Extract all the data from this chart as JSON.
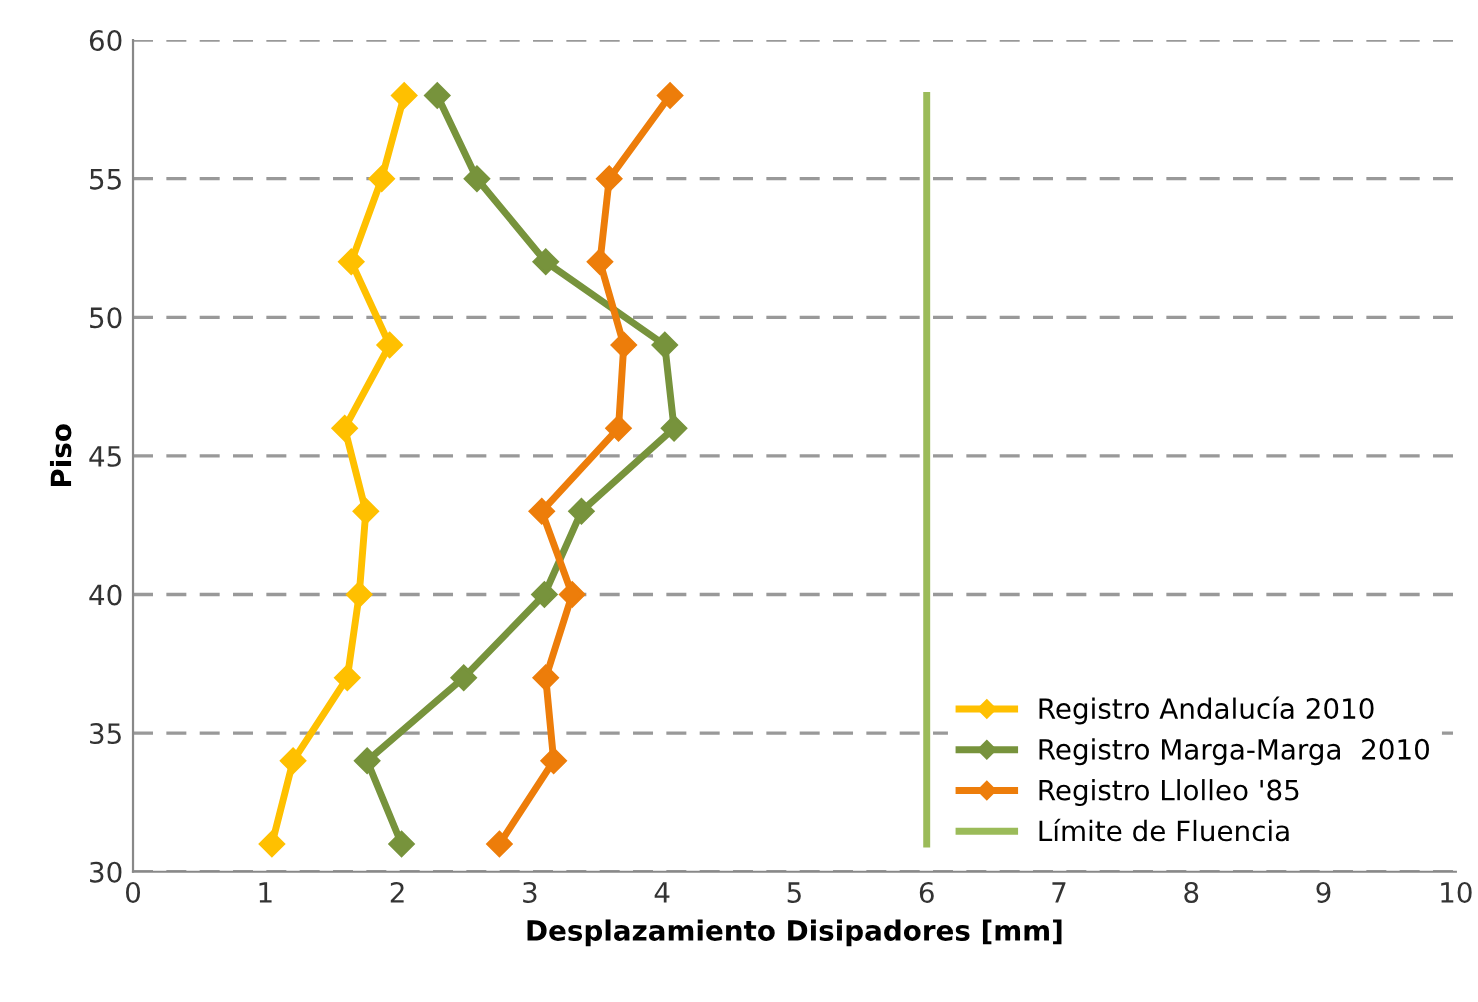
{
  "chart_data": {
    "type": "line",
    "xlabel": "Desplazamiento Disipadores [mm]",
    "ylabel": "Piso",
    "xlim": [
      0,
      10
    ],
    "xticks": [
      0,
      1,
      2,
      3,
      4,
      5,
      6,
      7,
      8,
      9,
      10
    ],
    "ylim": [
      30,
      60
    ],
    "yticks": [
      30,
      35,
      40,
      45,
      50,
      55,
      60
    ],
    "grid": "y",
    "legend": "bottom right",
    "marker": "diamond",
    "line_style": "solid",
    "series": [
      {
        "name": "Registro Andalucía 2010",
        "color": "#ffc000",
        "x": [
          2.05,
          1.88,
          1.65,
          1.94,
          1.6,
          1.76,
          1.71,
          1.62,
          1.21,
          1.05
        ],
        "values": [
          58,
          55,
          52,
          49,
          46,
          43,
          40,
          37,
          34,
          31
        ]
      },
      {
        "name": "Registro Marga-Marga  2010",
        "color": "#77933c",
        "x": [
          2.3,
          2.6,
          3.12,
          4.02,
          4.09,
          3.39,
          3.11,
          2.5,
          1.77,
          2.03
        ],
        "values": [
          58,
          55,
          52,
          49,
          46,
          43,
          40,
          37,
          34,
          31
        ]
      },
      {
        "name": "Registro Llolleo '85",
        "color": "#ed7d0a",
        "x": [
          4.06,
          3.6,
          3.53,
          3.71,
          3.67,
          3.09,
          3.32,
          3.12,
          3.18,
          2.77
        ],
        "values": [
          58,
          55,
          52,
          49,
          46,
          43,
          40,
          37,
          34,
          31
        ]
      },
      {
        "name": "Límite de Fluencia",
        "color": "#9bbb59",
        "marker": "none",
        "x": [
          6,
          6
        ],
        "values": [
          31,
          58
        ]
      }
    ]
  }
}
